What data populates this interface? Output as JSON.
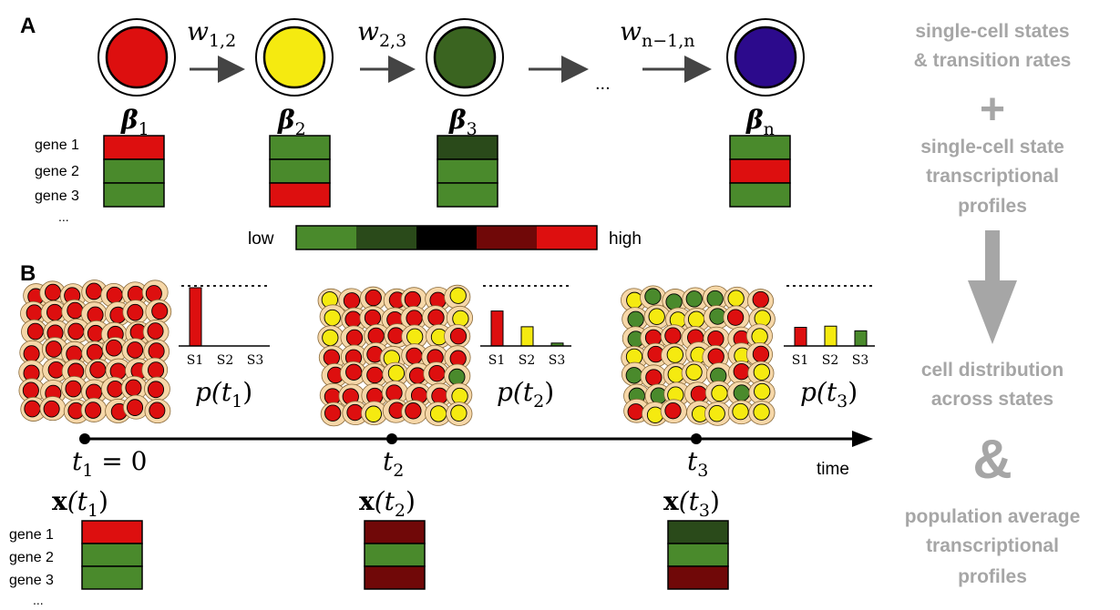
{
  "panel_a": {
    "label": "A",
    "states": [
      {
        "beta": "β",
        "sub": "1",
        "color": "#dd0f0f",
        "genes": [
          "#dd0f0f",
          "#4a8a2c",
          "#4a8a2c"
        ]
      },
      {
        "beta": "β",
        "sub": "2",
        "color": "#f5ea10",
        "genes": [
          "#4a8a2c",
          "#4a8a2c",
          "#dd0f0f"
        ]
      },
      {
        "beta": "β",
        "sub": "3",
        "color": "#3a6420",
        "genes": [
          "#2a4a1a",
          "#4a8a2c",
          "#4a8a2c"
        ]
      },
      {
        "beta": "β",
        "sub": "n",
        "color": "#2c0a8c",
        "genes": [
          "#4a8a2c",
          "#dd0f0f",
          "#4a8a2c"
        ]
      }
    ],
    "rates": [
      {
        "w": "w",
        "sub": "1,2"
      },
      {
        "w": "w",
        "sub": "2,3"
      },
      {
        "w": "w",
        "sub": "n−1,n"
      }
    ],
    "ellipsis": "...",
    "genes": [
      "gene 1",
      "gene 2",
      "gene 3"
    ],
    "genes_more": "...",
    "scale": {
      "low": "low",
      "high": "high",
      "colors": [
        "#4a8a2c",
        "#2a4a1a",
        "#000000",
        "#700808",
        "#dd0f0f"
      ]
    }
  },
  "panel_b": {
    "label": "B",
    "timepoints": [
      {
        "t": "t",
        "t_sub": "1",
        "t_suffix": " = 0",
        "x": "x",
        "x_arg": "(t",
        "x_sub": "1",
        "x_close": ")",
        "p": "p(t",
        "p_sub": "1",
        "p_close": ")",
        "bars": [
          1.0,
          0.0,
          0.0
        ],
        "profile": [
          "#dd0f0f",
          "#4a8a2c",
          "#4a8a2c"
        ],
        "cell_mix": [
          1.0,
          0.0,
          0.0
        ]
      },
      {
        "t": "t",
        "t_sub": "2",
        "t_suffix": "",
        "x": "x",
        "x_arg": "(t",
        "x_sub": "2",
        "x_close": ")",
        "p": "p(t",
        "p_sub": "2",
        "p_close": ")",
        "bars": [
          0.6,
          0.33,
          0.05
        ],
        "profile": [
          "#700808",
          "#4a8a2c",
          "#700808"
        ],
        "cell_mix": [
          0.6,
          0.33,
          0.07
        ]
      },
      {
        "t": "t",
        "t_sub": "3",
        "t_suffix": "",
        "x": "x",
        "x_arg": "(t",
        "x_sub": "3",
        "x_close": ")",
        "p": "p(t",
        "p_sub": "3",
        "p_close": ")",
        "bars": [
          0.32,
          0.34,
          0.26
        ],
        "profile": [
          "#2a4a1a",
          "#4a8a2c",
          "#700808"
        ],
        "cell_mix": [
          0.34,
          0.36,
          0.3
        ]
      }
    ],
    "bar_colors": [
      "#dd0f0f",
      "#f5ea10",
      "#4a8a2c"
    ],
    "state_labels": [
      "S1",
      "S2",
      "S3"
    ],
    "time_label": "time",
    "genes": [
      "gene 1",
      "gene 2",
      "gene 3"
    ],
    "genes_more": "..."
  },
  "side_text": {
    "line1": [
      "single-cell states",
      "& transition rates"
    ],
    "plus": "+",
    "line2": [
      "single-cell state",
      "transcriptional",
      "profiles"
    ],
    "line3": [
      "cell distribution",
      "across states"
    ],
    "ampersand": "&",
    "line4": [
      "population average",
      "transcriptional",
      "profiles"
    ],
    "arrow_color": "#a6a6a6"
  }
}
